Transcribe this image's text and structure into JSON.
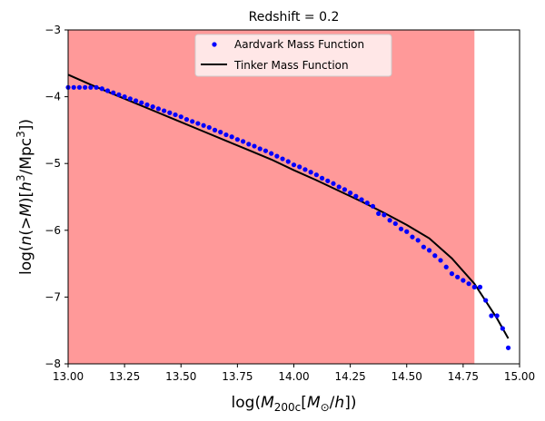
{
  "chart_data": {
    "type": "scatter",
    "title": "Redshift = 0.2",
    "xlabel": "log(M_200c[M_⊙/h])",
    "ylabel": "log(n(>M)[h^3/Mpc^3])",
    "xlim": [
      13.0,
      15.0
    ],
    "ylim": [
      -8,
      -3
    ],
    "x_ticks": [
      13.0,
      13.25,
      13.5,
      13.75,
      14.0,
      14.25,
      14.5,
      14.75,
      15.0
    ],
    "x_tick_labels": [
      "13.00",
      "13.25",
      "13.50",
      "13.75",
      "14.00",
      "14.25",
      "14.50",
      "14.75",
      "15.00"
    ],
    "y_ticks": [
      -8,
      -7,
      -6,
      -5,
      -4,
      -3
    ],
    "y_tick_labels": [
      "−8",
      "−7",
      "−6",
      "−5",
      "−4",
      "−3"
    ],
    "shaded_region": {
      "x_range": [
        13.0,
        14.8
      ],
      "color": "#ff9999"
    },
    "legend": {
      "position": "top-center",
      "entries": [
        "Aardvark Mass Function",
        "Tinker Mass Function"
      ]
    },
    "series": [
      {
        "name": "Aardvark Mass Function",
        "style": "points",
        "color": "#0000ff",
        "x": [
          13.0,
          13.025,
          13.05,
          13.075,
          13.1,
          13.125,
          13.15,
          13.175,
          13.2,
          13.225,
          13.25,
          13.275,
          13.3,
          13.325,
          13.35,
          13.375,
          13.4,
          13.425,
          13.45,
          13.475,
          13.5,
          13.525,
          13.55,
          13.575,
          13.6,
          13.625,
          13.65,
          13.675,
          13.7,
          13.725,
          13.75,
          13.775,
          13.8,
          13.825,
          13.85,
          13.875,
          13.9,
          13.925,
          13.95,
          13.975,
          14.0,
          14.025,
          14.05,
          14.075,
          14.1,
          14.125,
          14.15,
          14.175,
          14.2,
          14.225,
          14.25,
          14.275,
          14.3,
          14.325,
          14.35,
          14.375,
          14.4,
          14.425,
          14.45,
          14.475,
          14.5,
          14.525,
          14.55,
          14.575,
          14.6,
          14.625,
          14.65,
          14.675,
          14.7,
          14.725,
          14.75,
          14.775,
          14.8,
          14.825,
          14.85,
          14.875,
          14.9,
          14.925,
          14.95
        ],
        "y": [
          -3.86,
          -3.86,
          -3.86,
          -3.86,
          -3.86,
          -3.86,
          -3.88,
          -3.91,
          -3.94,
          -3.97,
          -4.0,
          -4.03,
          -4.06,
          -4.09,
          -4.12,
          -4.15,
          -4.18,
          -4.21,
          -4.24,
          -4.27,
          -4.3,
          -4.34,
          -4.37,
          -4.4,
          -4.43,
          -4.46,
          -4.5,
          -4.53,
          -4.57,
          -4.6,
          -4.64,
          -4.67,
          -4.71,
          -4.74,
          -4.78,
          -4.81,
          -4.85,
          -4.89,
          -4.93,
          -4.97,
          -5.02,
          -5.05,
          -5.09,
          -5.13,
          -5.17,
          -5.22,
          -5.26,
          -5.3,
          -5.35,
          -5.39,
          -5.44,
          -5.49,
          -5.54,
          -5.59,
          -5.64,
          -5.75,
          -5.77,
          -5.85,
          -5.9,
          -5.98,
          -6.02,
          -6.1,
          -6.15,
          -6.25,
          -6.3,
          -6.38,
          -6.45,
          -6.55,
          -6.65,
          -6.7,
          -6.75,
          -6.8,
          -6.85,
          -6.85,
          -7.05,
          -7.28,
          -7.28,
          -7.47,
          -7.76
        ]
      },
      {
        "name": "Tinker Mass Function",
        "style": "line",
        "color": "#000000",
        "x": [
          13.0,
          13.1,
          13.2,
          13.3,
          13.4,
          13.5,
          13.6,
          13.7,
          13.8,
          13.9,
          14.0,
          14.1,
          14.2,
          14.3,
          14.4,
          14.5,
          14.6,
          14.7,
          14.8,
          14.9,
          14.95
        ],
        "y": [
          -3.67,
          -3.82,
          -3.96,
          -4.1,
          -4.24,
          -4.38,
          -4.52,
          -4.66,
          -4.8,
          -4.94,
          -5.1,
          -5.25,
          -5.41,
          -5.57,
          -5.74,
          -5.92,
          -6.12,
          -6.42,
          -6.8,
          -7.32,
          -7.62
        ]
      }
    ]
  }
}
